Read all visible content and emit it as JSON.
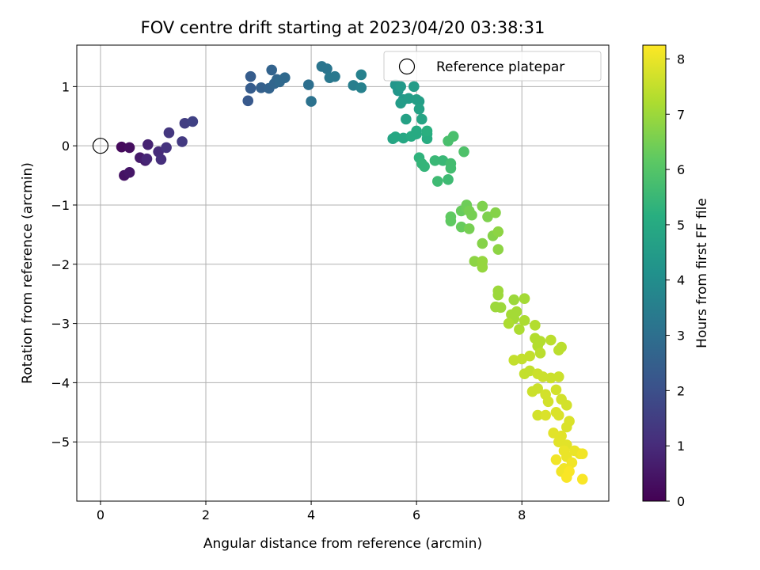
{
  "chart_data": {
    "type": "scatter",
    "title": "FOV centre drift starting at 2023/04/20 03:38:31",
    "xlabel": "Angular distance from reference (arcmin)",
    "ylabel": "Rotation from reference (arcmin)",
    "xlim": [
      -0.45,
      9.65
    ],
    "ylim": [
      -6.0,
      1.7
    ],
    "xticks": [
      0,
      2,
      4,
      6,
      8
    ],
    "yticks": [
      1,
      0,
      -1,
      -2,
      -3,
      -4,
      -5
    ],
    "grid": true,
    "legend": {
      "label": "Reference platepar",
      "position": "top-right",
      "marker": "open-circle"
    },
    "reference_point": {
      "x": 0,
      "y": 0
    },
    "colorbar": {
      "label": "Hours from first FF file",
      "colormap": "viridis",
      "range": [
        0,
        8.25
      ],
      "ticks": [
        0,
        1,
        2,
        3,
        4,
        5,
        6,
        7,
        8
      ]
    },
    "points": [
      {
        "x": 0.4,
        "y": -0.02,
        "hours": 0.2
      },
      {
        "x": 0.55,
        "y": -0.03,
        "hours": 0.3
      },
      {
        "x": 0.45,
        "y": -0.5,
        "hours": 0.4
      },
      {
        "x": 0.55,
        "y": -0.45,
        "hours": 0.5
      },
      {
        "x": 0.75,
        "y": -0.2,
        "hours": 0.6
      },
      {
        "x": 0.85,
        "y": -0.25,
        "hours": 0.7
      },
      {
        "x": 0.9,
        "y": 0.02,
        "hours": 0.8
      },
      {
        "x": 0.88,
        "y": -0.22,
        "hours": 0.9
      },
      {
        "x": 1.1,
        "y": -0.1,
        "hours": 1.0
      },
      {
        "x": 1.15,
        "y": -0.23,
        "hours": 1.1
      },
      {
        "x": 1.25,
        "y": -0.03,
        "hours": 1.2
      },
      {
        "x": 1.3,
        "y": 0.22,
        "hours": 1.3
      },
      {
        "x": 1.55,
        "y": 0.07,
        "hours": 1.4
      },
      {
        "x": 1.6,
        "y": 0.38,
        "hours": 1.5
      },
      {
        "x": 1.75,
        "y": 0.41,
        "hours": 1.6
      },
      {
        "x": 2.8,
        "y": 0.76,
        "hours": 2.3
      },
      {
        "x": 2.85,
        "y": 0.97,
        "hours": 2.4
      },
      {
        "x": 2.85,
        "y": 1.17,
        "hours": 2.4
      },
      {
        "x": 3.05,
        "y": 0.98,
        "hours": 2.5
      },
      {
        "x": 3.2,
        "y": 0.97,
        "hours": 2.6
      },
      {
        "x": 3.25,
        "y": 1.28,
        "hours": 2.6
      },
      {
        "x": 3.3,
        "y": 1.05,
        "hours": 2.7
      },
      {
        "x": 3.35,
        "y": 1.12,
        "hours": 2.7
      },
      {
        "x": 3.4,
        "y": 1.08,
        "hours": 2.8
      },
      {
        "x": 3.5,
        "y": 1.15,
        "hours": 2.8
      },
      {
        "x": 3.95,
        "y": 1.03,
        "hours": 3.0
      },
      {
        "x": 4.0,
        "y": 0.75,
        "hours": 3.1
      },
      {
        "x": 4.2,
        "y": 1.34,
        "hours": 3.2
      },
      {
        "x": 4.3,
        "y": 1.3,
        "hours": 3.2
      },
      {
        "x": 4.35,
        "y": 1.15,
        "hours": 3.3
      },
      {
        "x": 4.45,
        "y": 1.17,
        "hours": 3.3
      },
      {
        "x": 4.8,
        "y": 1.02,
        "hours": 3.5
      },
      {
        "x": 4.95,
        "y": 0.98,
        "hours": 3.6
      },
      {
        "x": 4.95,
        "y": 1.2,
        "hours": 3.6
      },
      {
        "x": 5.6,
        "y": 1.03,
        "hours": 4.3
      },
      {
        "x": 5.65,
        "y": 0.93,
        "hours": 4.3
      },
      {
        "x": 5.7,
        "y": 1.0,
        "hours": 4.4
      },
      {
        "x": 5.75,
        "y": 0.78,
        "hours": 4.4
      },
      {
        "x": 5.7,
        "y": 0.72,
        "hours": 4.5
      },
      {
        "x": 5.85,
        "y": 0.8,
        "hours": 4.5
      },
      {
        "x": 5.95,
        "y": 1.0,
        "hours": 4.5
      },
      {
        "x": 6.0,
        "y": 0.78,
        "hours": 4.6
      },
      {
        "x": 6.05,
        "y": 0.75,
        "hours": 4.6
      },
      {
        "x": 5.8,
        "y": 0.45,
        "hours": 4.7
      },
      {
        "x": 6.05,
        "y": 0.62,
        "hours": 4.7
      },
      {
        "x": 6.1,
        "y": 0.45,
        "hours": 4.8
      },
      {
        "x": 5.55,
        "y": 0.12,
        "hours": 4.8
      },
      {
        "x": 5.6,
        "y": 0.15,
        "hours": 4.9
      },
      {
        "x": 5.75,
        "y": 0.13,
        "hours": 4.9
      },
      {
        "x": 5.9,
        "y": 0.16,
        "hours": 5.0
      },
      {
        "x": 6.0,
        "y": 0.2,
        "hours": 5.0
      },
      {
        "x": 6.0,
        "y": 0.25,
        "hours": 5.0
      },
      {
        "x": 6.2,
        "y": 0.12,
        "hours": 5.1
      },
      {
        "x": 6.2,
        "y": 0.2,
        "hours": 5.1
      },
      {
        "x": 6.2,
        "y": 0.25,
        "hours": 5.2
      },
      {
        "x": 6.05,
        "y": -0.2,
        "hours": 5.3
      },
      {
        "x": 6.1,
        "y": -0.3,
        "hours": 5.4
      },
      {
        "x": 6.15,
        "y": -0.35,
        "hours": 5.4
      },
      {
        "x": 6.35,
        "y": -0.25,
        "hours": 5.5
      },
      {
        "x": 6.5,
        "y": -0.25,
        "hours": 5.5
      },
      {
        "x": 6.4,
        "y": -0.6,
        "hours": 5.6
      },
      {
        "x": 6.6,
        "y": -0.57,
        "hours": 5.6
      },
      {
        "x": 6.65,
        "y": -0.3,
        "hours": 5.7
      },
      {
        "x": 6.65,
        "y": -0.38,
        "hours": 5.7
      },
      {
        "x": 6.6,
        "y": 0.08,
        "hours": 5.8
      },
      {
        "x": 6.7,
        "y": 0.16,
        "hours": 5.8
      },
      {
        "x": 6.9,
        "y": -0.1,
        "hours": 5.9
      },
      {
        "x": 6.65,
        "y": -1.2,
        "hours": 6.2
      },
      {
        "x": 6.65,
        "y": -1.27,
        "hours": 6.2
      },
      {
        "x": 6.85,
        "y": -1.37,
        "hours": 6.3
      },
      {
        "x": 6.85,
        "y": -1.1,
        "hours": 6.3
      },
      {
        "x": 6.95,
        "y": -1.05,
        "hours": 6.4
      },
      {
        "x": 6.95,
        "y": -1.0,
        "hours": 6.4
      },
      {
        "x": 7.0,
        "y": -1.1,
        "hours": 6.5
      },
      {
        "x": 7.05,
        "y": -1.17,
        "hours": 6.5
      },
      {
        "x": 7.0,
        "y": -1.4,
        "hours": 6.5
      },
      {
        "x": 7.25,
        "y": -1.02,
        "hours": 6.6
      },
      {
        "x": 7.35,
        "y": -1.2,
        "hours": 6.6
      },
      {
        "x": 7.5,
        "y": -1.13,
        "hours": 6.7
      },
      {
        "x": 7.25,
        "y": -1.65,
        "hours": 6.7
      },
      {
        "x": 7.45,
        "y": -1.52,
        "hours": 6.7
      },
      {
        "x": 7.55,
        "y": -1.45,
        "hours": 6.8
      },
      {
        "x": 7.55,
        "y": -1.75,
        "hours": 6.8
      },
      {
        "x": 7.1,
        "y": -1.95,
        "hours": 6.8
      },
      {
        "x": 7.25,
        "y": -1.95,
        "hours": 6.9
      },
      {
        "x": 7.25,
        "y": -2.05,
        "hours": 6.9
      },
      {
        "x": 7.55,
        "y": -2.45,
        "hours": 7.0
      },
      {
        "x": 7.55,
        "y": -2.52,
        "hours": 7.0
      },
      {
        "x": 7.5,
        "y": -2.72,
        "hours": 7.0
      },
      {
        "x": 7.6,
        "y": -2.73,
        "hours": 7.0
      },
      {
        "x": 7.85,
        "y": -2.6,
        "hours": 7.0
      },
      {
        "x": 8.05,
        "y": -2.58,
        "hours": 7.1
      },
      {
        "x": 7.8,
        "y": -2.85,
        "hours": 7.1
      },
      {
        "x": 7.85,
        "y": -2.92,
        "hours": 7.1
      },
      {
        "x": 7.9,
        "y": -2.8,
        "hours": 7.1
      },
      {
        "x": 7.75,
        "y": -3.0,
        "hours": 7.2
      },
      {
        "x": 7.95,
        "y": -3.1,
        "hours": 7.2
      },
      {
        "x": 8.05,
        "y": -2.95,
        "hours": 7.2
      },
      {
        "x": 8.25,
        "y": -3.03,
        "hours": 7.3
      },
      {
        "x": 8.25,
        "y": -3.25,
        "hours": 7.3
      },
      {
        "x": 8.35,
        "y": -3.3,
        "hours": 7.3
      },
      {
        "x": 8.3,
        "y": -3.38,
        "hours": 7.3
      },
      {
        "x": 8.55,
        "y": -3.28,
        "hours": 7.4
      },
      {
        "x": 8.75,
        "y": -3.4,
        "hours": 7.4
      },
      {
        "x": 8.7,
        "y": -3.45,
        "hours": 7.4
      },
      {
        "x": 8.35,
        "y": -3.5,
        "hours": 7.4
      },
      {
        "x": 8.15,
        "y": -3.55,
        "hours": 7.5
      },
      {
        "x": 8.0,
        "y": -3.6,
        "hours": 7.5
      },
      {
        "x": 7.85,
        "y": -3.62,
        "hours": 7.5
      },
      {
        "x": 8.05,
        "y": -3.85,
        "hours": 7.5
      },
      {
        "x": 8.15,
        "y": -3.8,
        "hours": 7.5
      },
      {
        "x": 8.3,
        "y": -3.85,
        "hours": 7.6
      },
      {
        "x": 8.4,
        "y": -3.9,
        "hours": 7.6
      },
      {
        "x": 8.55,
        "y": -3.92,
        "hours": 7.6
      },
      {
        "x": 8.7,
        "y": -3.9,
        "hours": 7.6
      },
      {
        "x": 8.3,
        "y": -4.1,
        "hours": 7.6
      },
      {
        "x": 8.2,
        "y": -4.15,
        "hours": 7.6
      },
      {
        "x": 8.45,
        "y": -4.2,
        "hours": 7.7
      },
      {
        "x": 8.5,
        "y": -4.32,
        "hours": 7.7
      },
      {
        "x": 8.65,
        "y": -4.12,
        "hours": 7.7
      },
      {
        "x": 8.75,
        "y": -4.28,
        "hours": 7.7
      },
      {
        "x": 8.85,
        "y": -4.38,
        "hours": 7.7
      },
      {
        "x": 8.3,
        "y": -4.55,
        "hours": 7.7
      },
      {
        "x": 8.45,
        "y": -4.55,
        "hours": 7.8
      },
      {
        "x": 8.65,
        "y": -4.5,
        "hours": 7.8
      },
      {
        "x": 8.7,
        "y": -4.55,
        "hours": 7.8
      },
      {
        "x": 8.9,
        "y": -4.65,
        "hours": 7.8
      },
      {
        "x": 8.85,
        "y": -4.75,
        "hours": 7.8
      },
      {
        "x": 8.6,
        "y": -4.85,
        "hours": 7.9
      },
      {
        "x": 8.75,
        "y": -4.9,
        "hours": 7.9
      },
      {
        "x": 8.7,
        "y": -5.0,
        "hours": 7.9
      },
      {
        "x": 8.85,
        "y": -5.05,
        "hours": 7.9
      },
      {
        "x": 8.8,
        "y": -5.15,
        "hours": 8.0
      },
      {
        "x": 8.85,
        "y": -5.25,
        "hours": 8.0
      },
      {
        "x": 9.0,
        "y": -5.15,
        "hours": 8.0
      },
      {
        "x": 9.1,
        "y": -5.2,
        "hours": 8.0
      },
      {
        "x": 9.15,
        "y": -5.2,
        "hours": 8.1
      },
      {
        "x": 8.65,
        "y": -5.3,
        "hours": 8.1
      },
      {
        "x": 8.95,
        "y": -5.35,
        "hours": 8.1
      },
      {
        "x": 8.75,
        "y": -5.5,
        "hours": 8.1
      },
      {
        "x": 8.8,
        "y": -5.45,
        "hours": 8.1
      },
      {
        "x": 8.9,
        "y": -5.5,
        "hours": 8.2
      },
      {
        "x": 8.85,
        "y": -5.6,
        "hours": 8.2
      },
      {
        "x": 9.15,
        "y": -5.63,
        "hours": 8.2
      }
    ]
  }
}
